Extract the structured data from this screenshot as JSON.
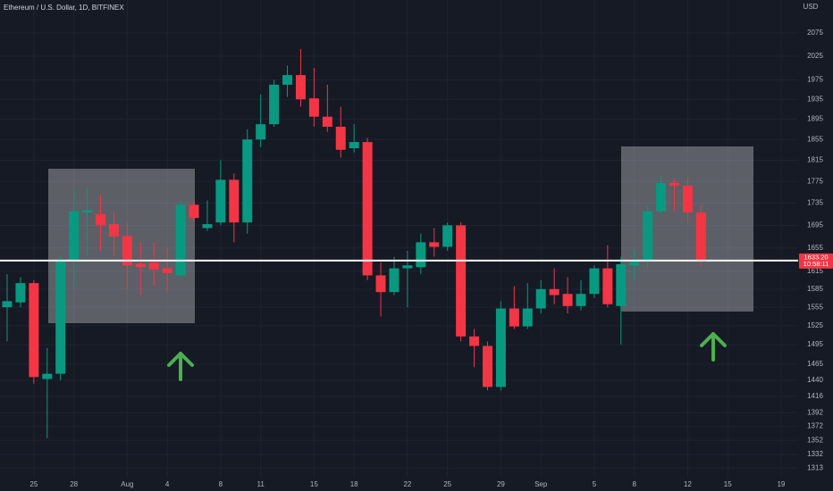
{
  "chart_data": {
    "type": "candlestick",
    "title": "Ethereum / U.S. Dollar, 1D, BITFINEX",
    "currency": "USD",
    "categories": [
      null,
      null,
      "25",
      null,
      null,
      "28",
      null,
      null,
      null,
      "Aug",
      null,
      null,
      "4",
      null,
      null,
      null,
      "8",
      null,
      null,
      "11",
      null,
      null,
      null,
      "15",
      null,
      null,
      "18",
      null,
      null,
      null,
      "22",
      null,
      null,
      "25",
      null,
      null,
      null,
      "29",
      null,
      null,
      "Sep",
      null,
      null,
      null,
      "5",
      null,
      null,
      "8",
      null,
      null,
      null,
      "12",
      null,
      null,
      "15",
      null,
      null,
      null,
      "19"
    ],
    "open": [
      1555,
      1563,
      1595,
      1442,
      1450,
      1632,
      1718,
      1715,
      1697,
      1676,
      1628,
      1630,
      1620,
      1608,
      1732,
      1690,
      1700,
      1778,
      1700,
      1855,
      1885,
      1965,
      1985,
      1937,
      1900,
      1880,
      1838,
      1850,
      1608,
      1580,
      1620,
      1622,
      1665,
      1657,
      1695,
      1508,
      1493,
      1430,
      1553,
      1524,
      1553,
      1585,
      1577,
      1557,
      1577,
      1620,
      1557,
      1625,
      1633,
      1720,
      1772,
      1767,
      1718,
      null,
      null,
      null,
      null,
      null,
      null
    ],
    "high": [
      1610,
      1605,
      1600,
      1490,
      1640,
      1760,
      1765,
      1750,
      1720,
      1700,
      1665,
      1665,
      1655,
      1740,
      1740,
      1740,
      1815,
      1790,
      1875,
      1945,
      1975,
      2005,
      2040,
      2000,
      1965,
      1920,
      1885,
      1858,
      1630,
      1640,
      1650,
      1680,
      1690,
      1700,
      1700,
      1520,
      1500,
      1565,
      1590,
      1595,
      1600,
      1620,
      1605,
      1600,
      1625,
      1660,
      1640,
      1650,
      1730,
      1785,
      1780,
      1782,
      1730,
      null,
      null,
      null,
      null,
      null,
      null
    ],
    "low": [
      1500,
      1555,
      1435,
      1355,
      1440,
      1590,
      1640,
      1650,
      1640,
      1585,
      1575,
      1590,
      1580,
      1605,
      1700,
      1685,
      1695,
      1665,
      1680,
      1840,
      1880,
      1940,
      1920,
      1880,
      1870,
      1820,
      1830,
      1600,
      1540,
      1575,
      1555,
      1610,
      1640,
      1650,
      1500,
      1460,
      1425,
      1425,
      1520,
      1520,
      1545,
      1560,
      1545,
      1550,
      1570,
      1555,
      1495,
      1600,
      1620,
      1715,
      1720,
      1700,
      1625,
      null,
      null,
      null,
      null,
      null,
      null
    ],
    "close": [
      1565,
      1595,
      1445,
      1450,
      1632,
      1720,
      1722,
      1695,
      1675,
      1625,
      1622,
      1618,
      1612,
      1732,
      1708,
      1697,
      1778,
      1700,
      1855,
      1885,
      1965,
      1985,
      1935,
      1900,
      1880,
      1835,
      1850,
      1608,
      1580,
      1620,
      1625,
      1665,
      1657,
      1695,
      1508,
      1493,
      1430,
      1553,
      1524,
      1553,
      1585,
      1575,
      1557,
      1577,
      1620,
      1560,
      1627,
      1633,
      1720,
      1772,
      1767,
      1718,
      1633.2,
      null,
      null,
      null,
      null,
      null,
      null
    ],
    "up_color": "#089981",
    "down_color": "#f23645",
    "log_scale": true,
    "grid": true,
    "ylim": [
      1300,
      2148
    ],
    "yticks": [
      2075,
      2025,
      1975,
      1935,
      1895,
      1855,
      1815,
      1775,
      1735,
      1695,
      1655,
      1615,
      1585,
      1555,
      1525,
      1495,
      1465,
      1440,
      1416,
      1392,
      1372,
      1352,
      1332,
      1313
    ],
    "last_price_label": "1633.20",
    "countdown": "10:58:11"
  }
}
